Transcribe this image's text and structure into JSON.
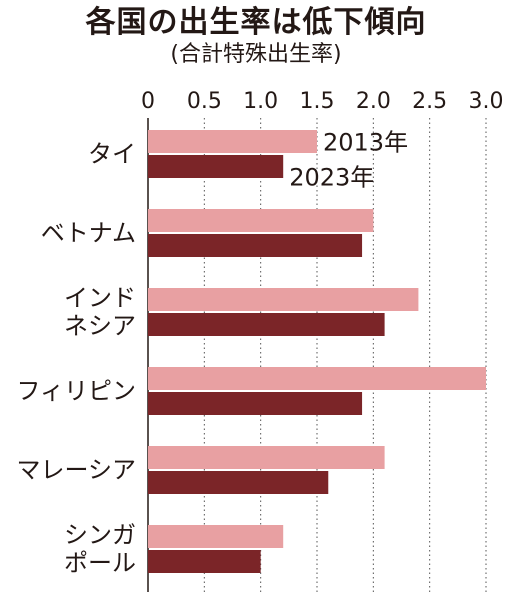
{
  "chart_data": {
    "type": "bar",
    "orientation": "horizontal",
    "title": "各国の出生率は低下傾向",
    "subtitle": "(合計特殊出生率)",
    "categories": [
      [
        "タイ"
      ],
      [
        "ベトナム"
      ],
      [
        "インド",
        "ネシア"
      ],
      [
        "フィリピン"
      ],
      [
        "マレーシア"
      ],
      [
        "シンガ",
        "ポール"
      ]
    ],
    "series": [
      {
        "name": "2013年",
        "values": [
          1.5,
          2.0,
          2.4,
          3.0,
          2.1,
          1.2
        ],
        "color": "#e8a0a2"
      },
      {
        "name": "2023年",
        "values": [
          1.2,
          1.9,
          2.1,
          1.9,
          1.6,
          1.0
        ],
        "color": "#7b2528"
      }
    ],
    "x_ticks": [
      "0",
      "0.5",
      "1.0",
      "1.5",
      "2.0",
      "2.5",
      "3.0"
    ],
    "xlim": [
      0,
      3.0
    ],
    "grid": "dotted vertical",
    "legend": "inline labels next to first category bars"
  }
}
